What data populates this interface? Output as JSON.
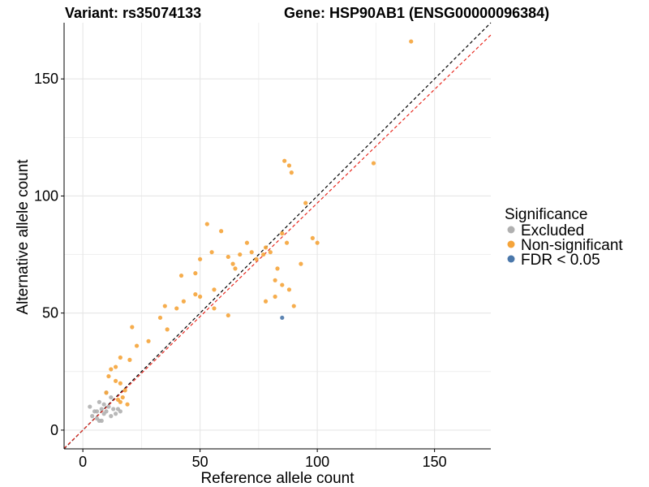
{
  "chart_data": {
    "type": "scatter",
    "title_left": "Variant: rs35074133",
    "title_right": "Gene: HSP90AB1 (ENSG00000096384)",
    "xlabel": "Reference allele count",
    "ylabel": "Alternative allele count",
    "xlim": [
      -8,
      174
    ],
    "ylim": [
      -8,
      174
    ],
    "x_ticks": [
      0,
      50,
      100,
      150
    ],
    "y_ticks": [
      0,
      50,
      100,
      150
    ],
    "grid": true,
    "colors": {
      "excluded": "#b0b0b0",
      "nonsig": "#f5a43a",
      "fdr": "#4a77aa",
      "identity_line": "#000000",
      "fit_line": "#e8281e",
      "axis": "#000000",
      "grid": "#e6e6e6"
    },
    "reference_lines": [
      {
        "name": "identity",
        "slope": 1.0,
        "intercept": 0,
        "style": "dashed",
        "color": "#000000"
      },
      {
        "name": "fit",
        "slope": 0.97,
        "intercept": 0,
        "style": "dashed",
        "color": "#e8281e"
      }
    ],
    "legend": {
      "title": "Significance",
      "position": "right",
      "items": [
        {
          "label": "Excluded",
          "key": "excluded",
          "color": "#b0b0b0"
        },
        {
          "label": "Non-significant",
          "key": "nonsig",
          "color": "#f5a43a"
        },
        {
          "label": "FDR < 0.05",
          "key": "fdr",
          "color": "#4a77aa"
        }
      ]
    },
    "series": [
      {
        "name": "Excluded",
        "color": "#b0b0b0",
        "points": [
          [
            3,
            10
          ],
          [
            4,
            6
          ],
          [
            5,
            8
          ],
          [
            6,
            5
          ],
          [
            7,
            4
          ],
          [
            8,
            9
          ],
          [
            9,
            7
          ],
          [
            10,
            8
          ],
          [
            12,
            6
          ],
          [
            13,
            9
          ],
          [
            14,
            7
          ],
          [
            16,
            8
          ],
          [
            10,
            16
          ],
          [
            12,
            14
          ],
          [
            7,
            12
          ],
          [
            9,
            11
          ],
          [
            8,
            4
          ],
          [
            6,
            8
          ],
          [
            11,
            10
          ],
          [
            15,
            9
          ]
        ]
      },
      {
        "name": "FDR < 0.05",
        "color": "#4a77aa",
        "points": [
          [
            85,
            48
          ]
        ]
      },
      {
        "name": "Non-significant",
        "color": "#f5a43a",
        "points": [
          [
            140,
            166
          ],
          [
            124,
            114
          ],
          [
            86,
            115
          ],
          [
            88,
            113
          ],
          [
            89,
            110
          ],
          [
            95,
            97
          ],
          [
            87,
            80
          ],
          [
            98,
            82
          ],
          [
            100,
            80
          ],
          [
            93,
            71
          ],
          [
            85,
            84
          ],
          [
            77,
            75
          ],
          [
            80,
            76
          ],
          [
            83,
            69
          ],
          [
            82,
            64
          ],
          [
            85,
            62
          ],
          [
            82,
            57
          ],
          [
            88,
            60
          ],
          [
            78,
            55
          ],
          [
            90,
            53
          ],
          [
            53,
            88
          ],
          [
            59,
            85
          ],
          [
            70,
            80
          ],
          [
            72,
            76
          ],
          [
            67,
            75
          ],
          [
            74,
            73
          ],
          [
            78,
            78
          ],
          [
            64,
            71
          ],
          [
            65,
            69
          ],
          [
            50,
            73
          ],
          [
            55,
            76
          ],
          [
            62,
            74
          ],
          [
            48,
            67
          ],
          [
            42,
            66
          ],
          [
            48,
            58
          ],
          [
            50,
            57
          ],
          [
            43,
            55
          ],
          [
            35,
            53
          ],
          [
            40,
            52
          ],
          [
            56,
            52
          ],
          [
            62,
            49
          ],
          [
            56,
            60
          ],
          [
            33,
            48
          ],
          [
            36,
            43
          ],
          [
            21,
            44
          ],
          [
            28,
            38
          ],
          [
            23,
            36
          ],
          [
            16,
            31
          ],
          [
            20,
            30
          ],
          [
            14,
            27
          ],
          [
            12,
            26
          ],
          [
            11,
            23
          ],
          [
            14,
            21
          ],
          [
            16,
            20
          ],
          [
            10,
            16
          ],
          [
            17,
            14
          ],
          [
            16,
            12
          ],
          [
            19,
            11
          ],
          [
            15,
            13
          ],
          [
            18,
            17
          ]
        ]
      }
    ]
  }
}
